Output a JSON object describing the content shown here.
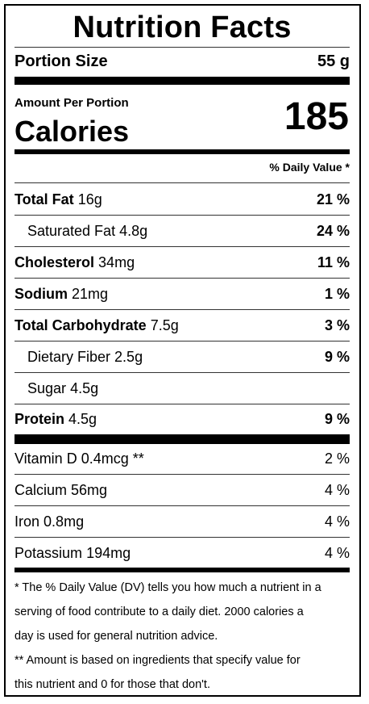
{
  "label": {
    "title": "Nutrition Facts",
    "portion_size_label": "Portion Size",
    "portion_size_value": "55 g",
    "amount_per_portion": "Amount Per Portion",
    "calories_label": "Calories",
    "calories_value": "185",
    "daily_value_header": "% Daily Value *"
  },
  "nutrients": [
    {
      "name": "Total Fat",
      "amount": "16g",
      "dv": "21 %"
    },
    {
      "name": "Saturated Fat",
      "amount": "4.8g",
      "dv": "24 %"
    },
    {
      "name": "Cholesterol",
      "amount": "34mg",
      "dv": "11 %"
    },
    {
      "name": "Sodium",
      "amount": "21mg",
      "dv": "1 %"
    },
    {
      "name": "Total Carbohydrate",
      "amount": "7.5g",
      "dv": "3 %"
    },
    {
      "name": "Dietary Fiber",
      "amount": "2.5g",
      "dv": "9 %"
    },
    {
      "name": "Sugar",
      "amount": "4.5g",
      "dv": ""
    },
    {
      "name": "Protein",
      "amount": "4.5g",
      "dv": "9 %"
    }
  ],
  "vitamins": [
    {
      "name": "Vitamin D",
      "amount": "0.4mcg **",
      "dv": "2 %"
    },
    {
      "name": "Calcium",
      "amount": "56mg",
      "dv": "4 %"
    },
    {
      "name": "Iron",
      "amount": "0.8mg",
      "dv": "4 %"
    },
    {
      "name": "Potassium",
      "amount": "194mg",
      "dv": "4 %"
    }
  ],
  "footnotes": {
    "line1": "* The % Daily Value (DV) tells you how much a nutrient in a",
    "line2": "serving of food contribute to a daily diet. 2000 calories a",
    "line3": "day is used for general nutrition advice.",
    "line4": "** Amount is based on ingredients that specify value for",
    "line5": "this nutrient and 0 for those that don't."
  }
}
